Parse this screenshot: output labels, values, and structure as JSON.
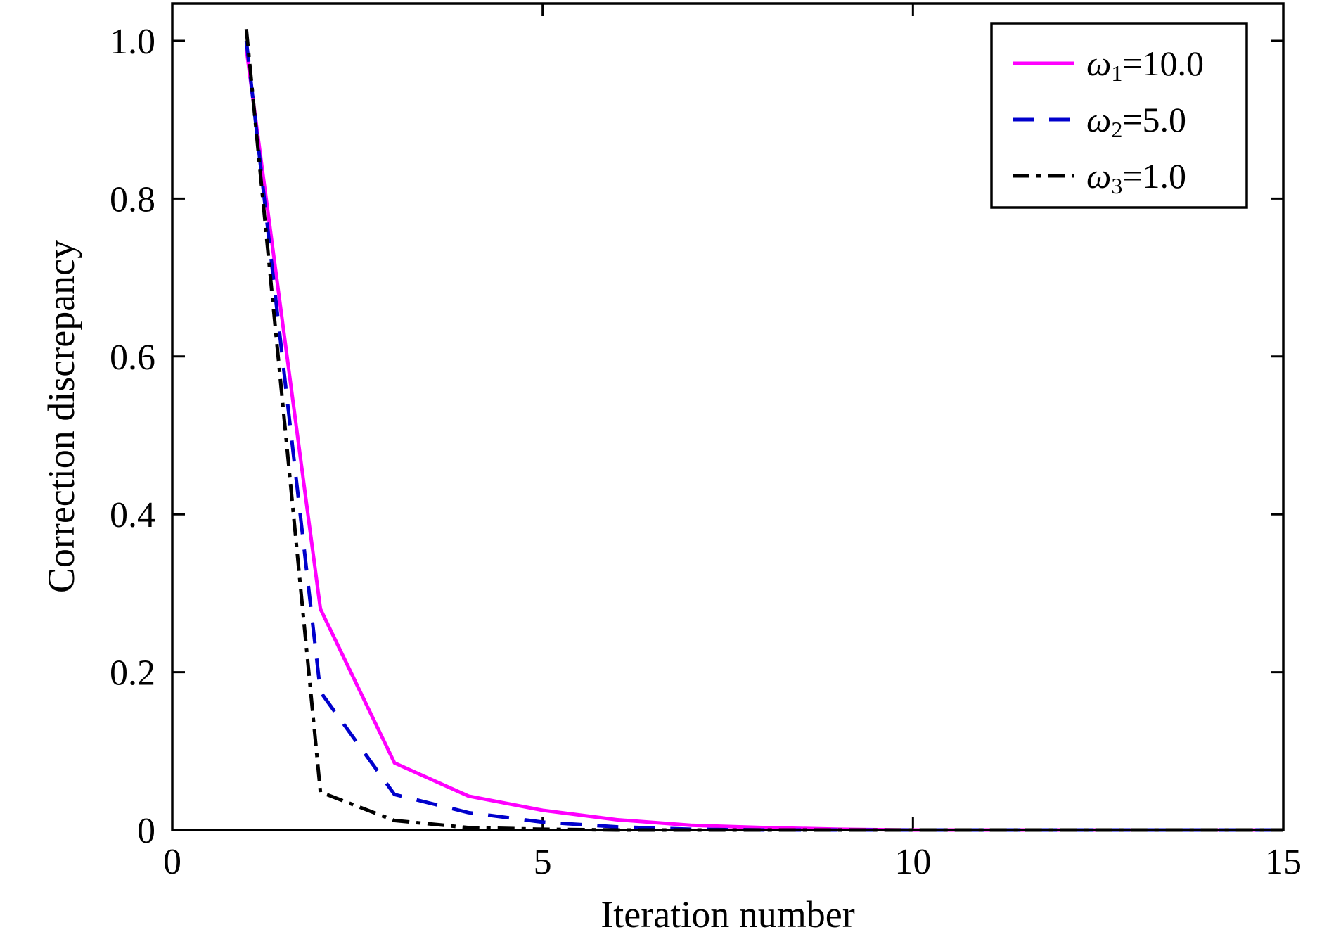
{
  "chart_data": {
    "type": "line",
    "xlabel": "Iteration number",
    "ylabel": "Correction discrepancy",
    "xlim": [
      0,
      15
    ],
    "ylim": [
      0,
      1.0
    ],
    "xticks": [
      0,
      5,
      10,
      15
    ],
    "xtick_labels": [
      "0",
      "5",
      "10",
      "15"
    ],
    "yticks": [
      0,
      0.2,
      0.4,
      0.6,
      0.8,
      1.0
    ],
    "ytick_labels": [
      "0",
      "0.2",
      "0.4",
      "0.6",
      "0.8",
      "1.0"
    ],
    "grid": false,
    "legend_position": "top-right",
    "x": [
      1,
      2,
      3,
      4,
      5,
      6,
      7,
      8,
      9,
      10,
      11,
      12,
      13,
      14,
      15
    ],
    "series": [
      {
        "legend_symbol": "ω",
        "legend_sub": "1",
        "legend_value": "=10.0",
        "color": "#ff00ff",
        "style": "solid",
        "values": [
          0.99,
          0.28,
          0.085,
          0.043,
          0.025,
          0.013,
          0.006,
          0.003,
          0.001,
          0.0,
          0.0,
          0.0,
          0.0,
          0.0,
          0.0
        ]
      },
      {
        "legend_symbol": "ω",
        "legend_sub": "2",
        "legend_value": "=5.0",
        "color": "#0000cc",
        "style": "dashed",
        "values": [
          1.0,
          0.175,
          0.045,
          0.022,
          0.01,
          0.004,
          0.001,
          0.0,
          0.0,
          0.0,
          0.0,
          0.0,
          0.0,
          0.0,
          0.0
        ]
      },
      {
        "legend_symbol": "ω",
        "legend_sub": "3",
        "legend_value": "=1.0",
        "color": "#000000",
        "style": "dashdot",
        "values": [
          1.015,
          0.048,
          0.012,
          0.003,
          0.001,
          0.0,
          0.0,
          0.0,
          0.0,
          0.0,
          0.0,
          0.0,
          0.0,
          0.0,
          0.0
        ]
      }
    ]
  }
}
